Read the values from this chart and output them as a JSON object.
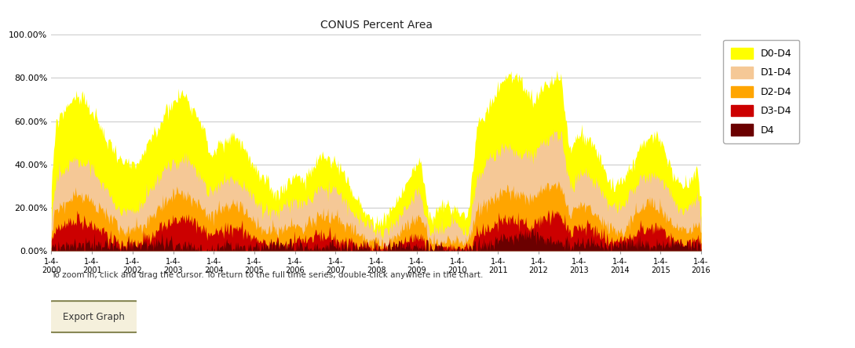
{
  "title": "CONUS Percent Area",
  "ytick_vals": [
    0,
    20,
    40,
    60,
    80,
    100
  ],
  "colors": {
    "D0_D4": "#FFFF00",
    "D1_D4": "#F5C896",
    "D2_D4": "#FFA500",
    "D3_D4": "#CC0000",
    "D4": "#6B0000"
  },
  "legend_labels": [
    "D0-D4",
    "D1-D4",
    "D2-D4",
    "D3-D4",
    "D4"
  ],
  "note": "To zoom in, click and drag the cursor. To return to the full time series, double-click anywhere in the chart.",
  "export_label": "Export Graph",
  "x_tick_years": [
    2000,
    2001,
    2002,
    2003,
    2004,
    2005,
    2006,
    2007,
    2008,
    2009,
    2010,
    2011,
    2012,
    2013,
    2014,
    2015,
    2016
  ],
  "background_color": "#ffffff",
  "plot_bg_color": "#ffffff",
  "grid_color": "#cccccc",
  "figsize": [
    10.89,
    4.44
  ],
  "dpi": 100
}
